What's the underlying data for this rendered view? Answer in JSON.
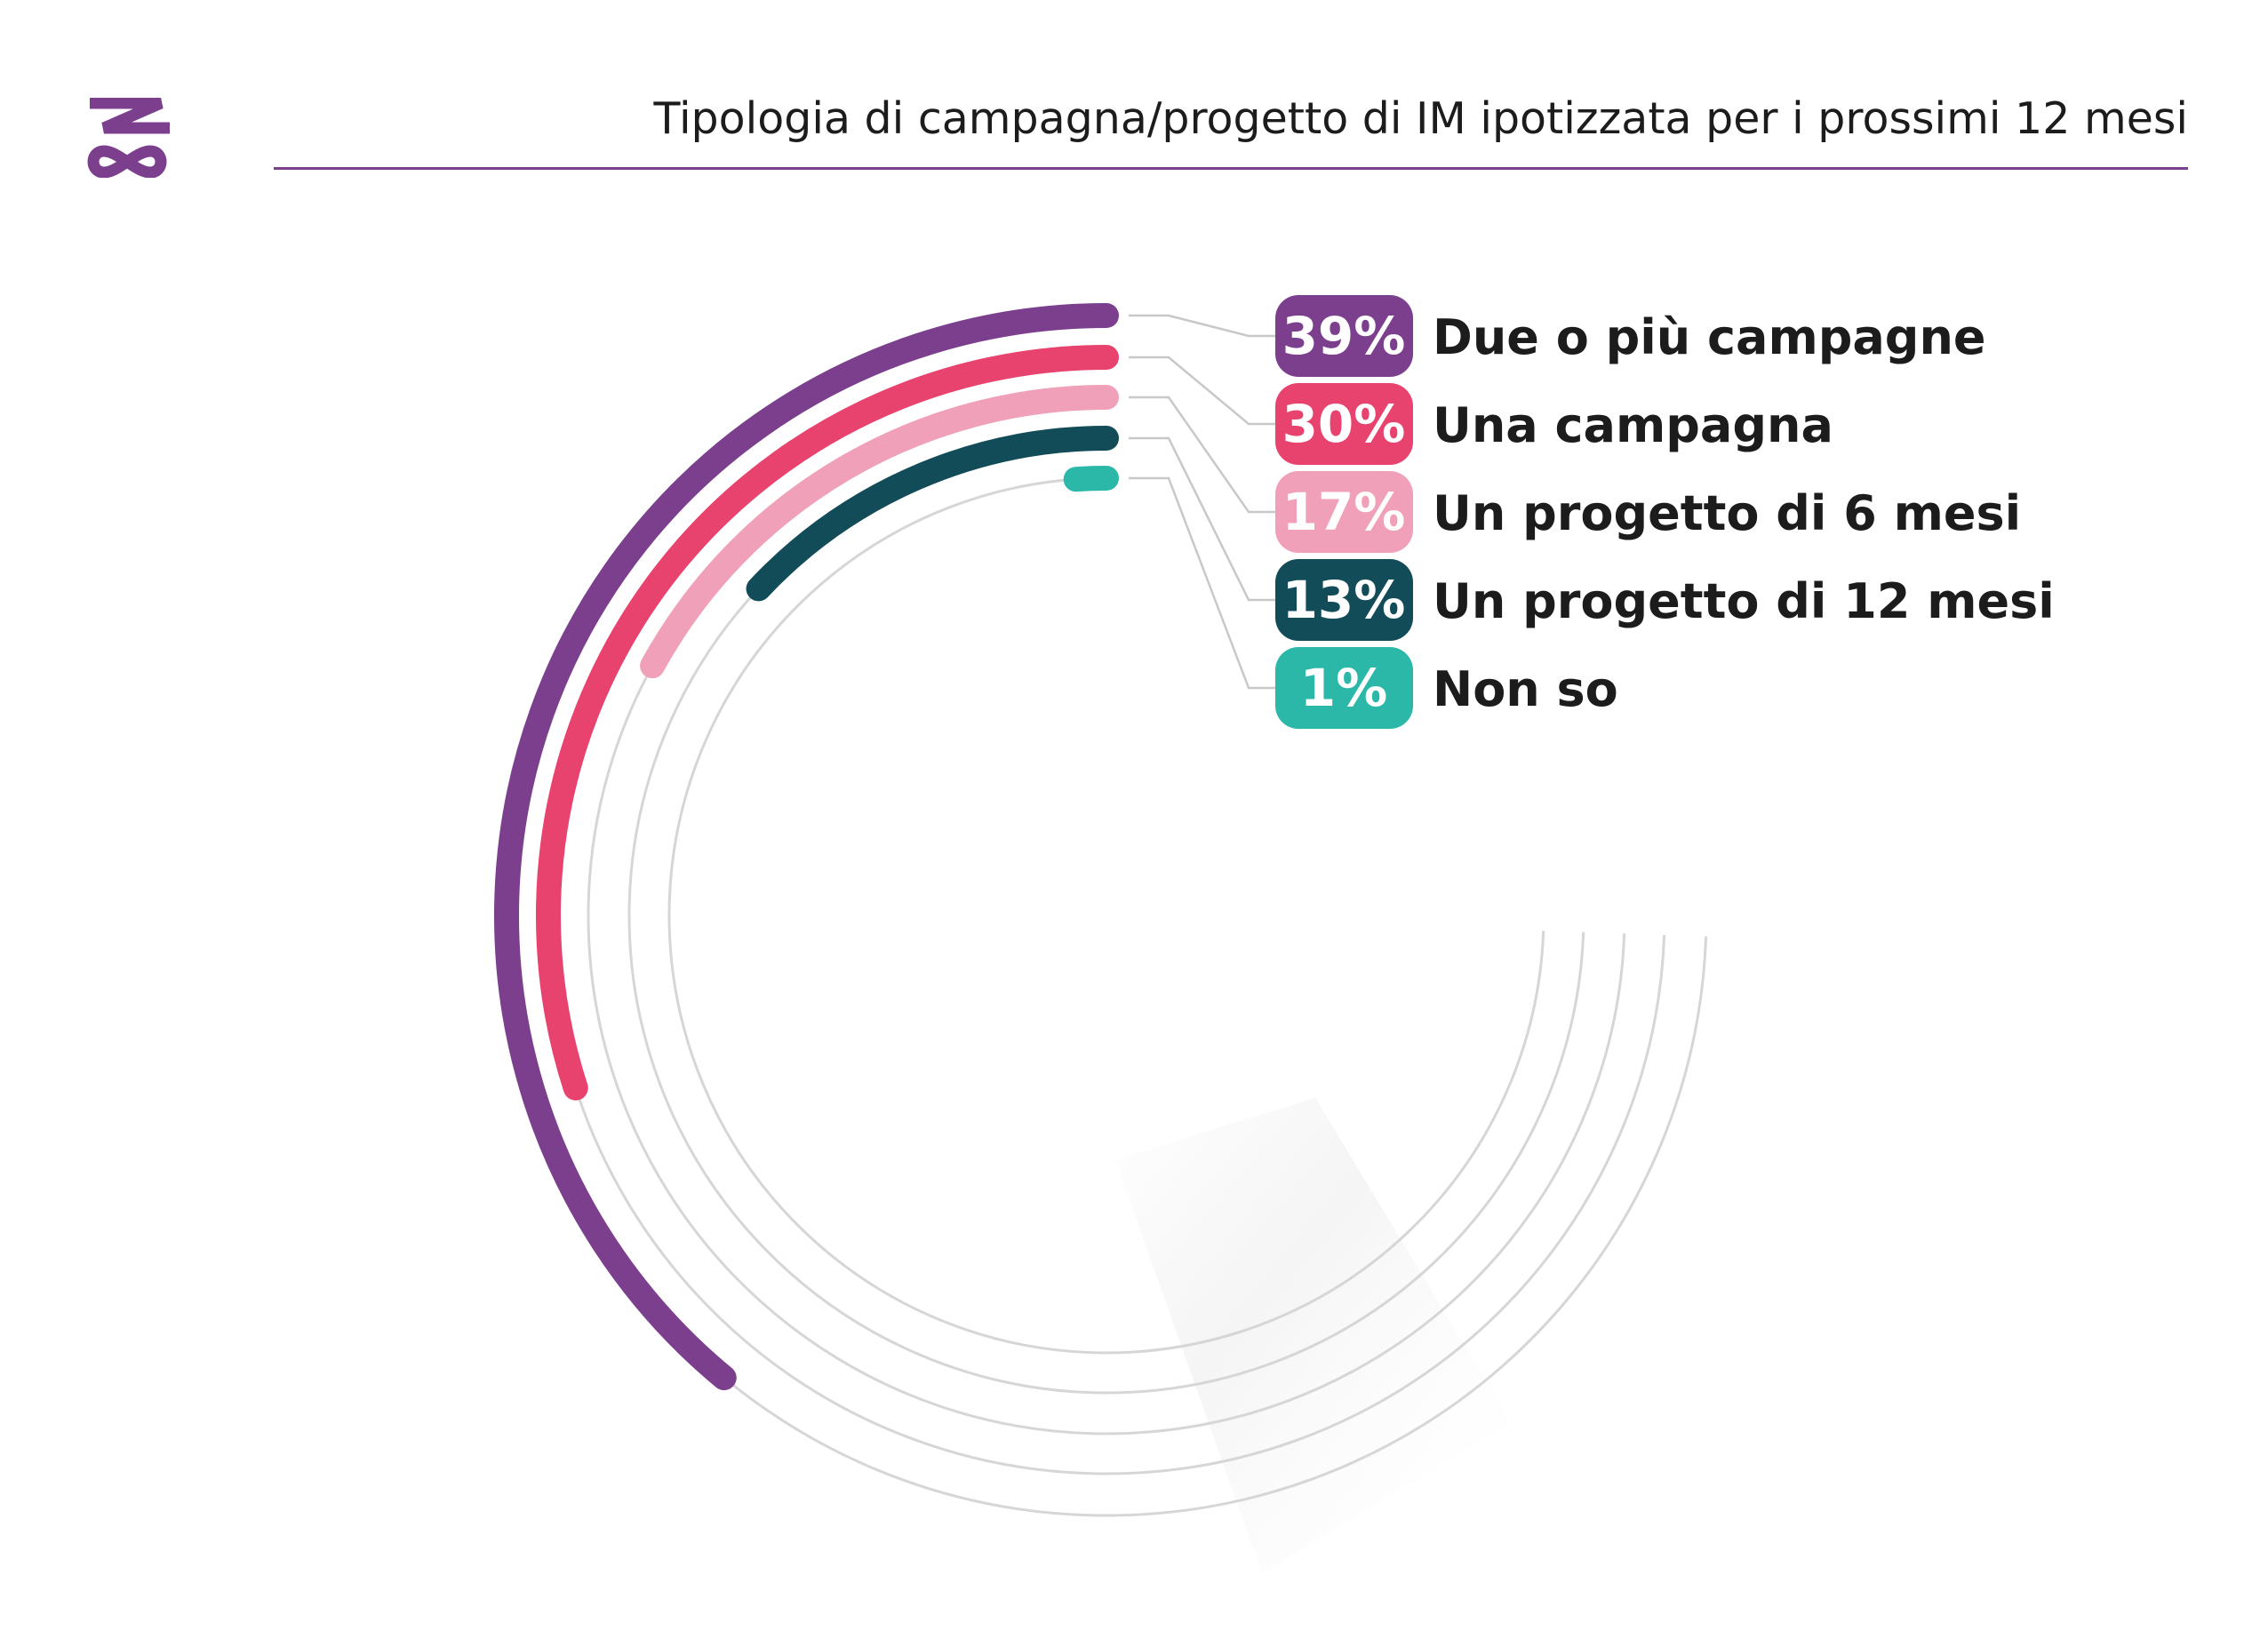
{
  "header": {
    "title": "Tipologia di campagna/progetto di IM ipotizzata per i prossimi 12 mesi"
  },
  "colors": {
    "brand": "#7c3f8e",
    "track": "#d6d6d6",
    "leader": "#c8c8c8",
    "label_text": "#1c1c1c"
  },
  "chart_data": {
    "type": "radial-bar",
    "title": "Tipologia di campagna/progetto di IM ipotizzata per i prossimi 12 mesi",
    "unit": "%",
    "series": [
      {
        "label": "Due o più campagne",
        "value": 39,
        "value_label": "39%",
        "color": "#7c3f8e"
      },
      {
        "label": "Una campagna",
        "value": 30,
        "value_label": "30%",
        "color": "#e8436f"
      },
      {
        "label": "Un progetto di 6 mesi",
        "value": 17,
        "value_label": "17%",
        "color": "#f0a0b8"
      },
      {
        "label": "Un progetto di 12 mesi",
        "value": 13,
        "value_label": "13%",
        "color": "#124c58"
      },
      {
        "label": "Non so",
        "value": 1,
        "value_label": "1%",
        "color": "#2bb8a9"
      }
    ]
  }
}
